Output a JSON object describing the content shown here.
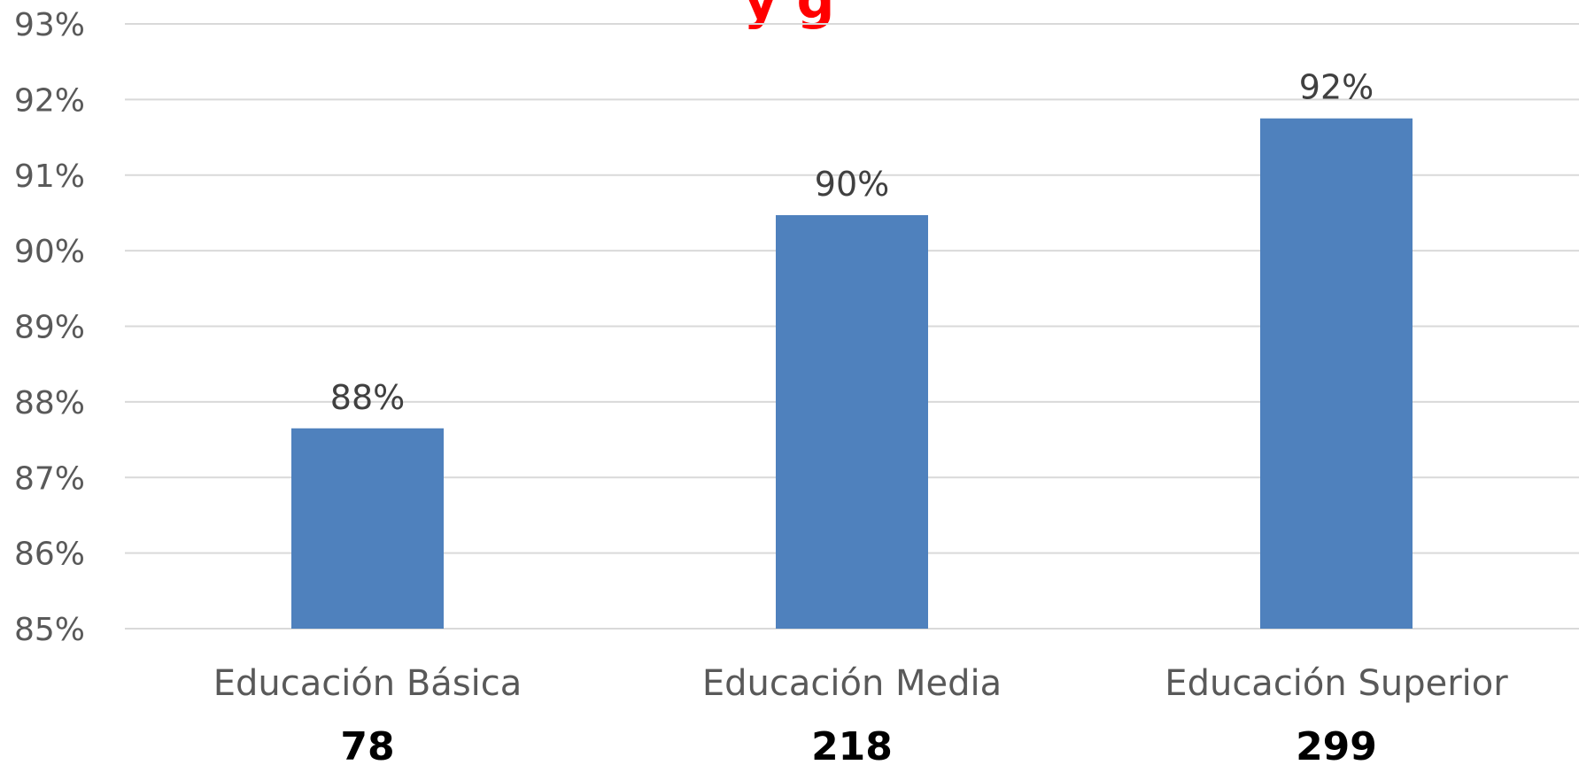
{
  "chart_data": {
    "type": "bar",
    "title_fragment": "y g",
    "categories": [
      "Educación Básica",
      "Educación Media",
      "Educación Superior"
    ],
    "values": [
      87.65,
      90.47,
      91.75
    ],
    "data_labels": [
      "88%",
      "90%",
      "92%"
    ],
    "counts": [
      "78",
      "218",
      "299"
    ],
    "ylim": [
      85,
      93
    ],
    "yticks": [
      85,
      86,
      87,
      88,
      89,
      90,
      91,
      92,
      93
    ],
    "ytick_labels": [
      "85%",
      "86%",
      "87%",
      "88%",
      "89%",
      "90%",
      "91%",
      "92%",
      "93%"
    ],
    "grid": true,
    "xlabel": "",
    "ylabel": ""
  },
  "colors": {
    "bar": "#4f81bd",
    "title": "#ff0000",
    "grid": "#d9d9d9"
  }
}
